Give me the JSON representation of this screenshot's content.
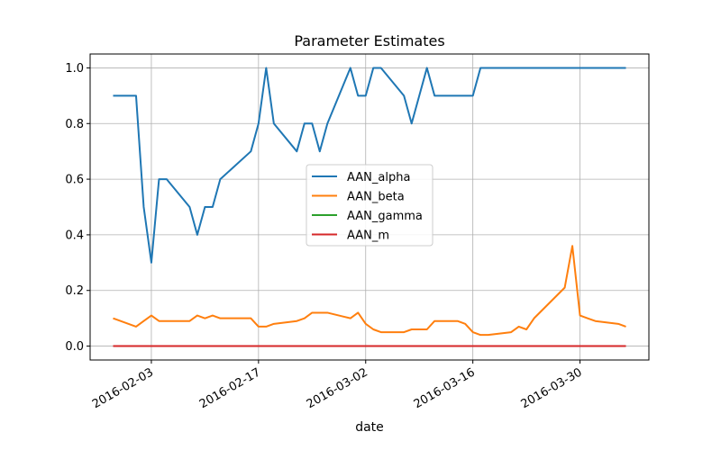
{
  "chart_data": {
    "type": "line",
    "title": "Parameter Estimates",
    "xlabel": "date",
    "ylabel": "",
    "x_dates": [
      "2016-01-29",
      "2016-02-01",
      "2016-02-02",
      "2016-02-03",
      "2016-02-04",
      "2016-02-05",
      "2016-02-08",
      "2016-02-09",
      "2016-02-10",
      "2016-02-11",
      "2016-02-12",
      "2016-02-16",
      "2016-02-17",
      "2016-02-18",
      "2016-02-19",
      "2016-02-22",
      "2016-02-23",
      "2016-02-24",
      "2016-02-25",
      "2016-02-26",
      "2016-02-29",
      "2016-03-01",
      "2016-03-02",
      "2016-03-03",
      "2016-03-04",
      "2016-03-07",
      "2016-03-08",
      "2016-03-09",
      "2016-03-10",
      "2016-03-11",
      "2016-03-14",
      "2016-03-15",
      "2016-03-16",
      "2016-03-17",
      "2016-03-18",
      "2016-03-21",
      "2016-03-22",
      "2016-03-23",
      "2016-03-24",
      "2016-03-28",
      "2016-03-29",
      "2016-03-30",
      "2016-03-31",
      "2016-04-01",
      "2016-04-04",
      "2016-04-05"
    ],
    "x_ticks": [
      "2016-02-03",
      "2016-02-17",
      "2016-03-02",
      "2016-03-16",
      "2016-03-30"
    ],
    "y_ticks": [
      0.0,
      0.2,
      0.4,
      0.6,
      0.8,
      1.0
    ],
    "y_tick_labels": [
      "0.0",
      "0.2",
      "0.4",
      "0.6",
      "0.8",
      "1.0"
    ],
    "xlim": [
      "2016-01-26",
      "2016-04-08"
    ],
    "ylim": [
      -0.05,
      1.05
    ],
    "grid": true,
    "legend_position": "center",
    "series": [
      {
        "name": "AAN_alpha",
        "color": "#1f77b4",
        "values": [
          0.9,
          0.9,
          0.5,
          0.3,
          0.6,
          0.6,
          0.5,
          0.4,
          0.5,
          0.5,
          0.6,
          0.7,
          0.8,
          1.0,
          0.8,
          0.7,
          0.8,
          0.8,
          0.7,
          0.8,
          1.0,
          0.9,
          0.9,
          1.0,
          1.0,
          0.9,
          0.8,
          0.9,
          1.0,
          0.9,
          0.9,
          0.9,
          0.9,
          1.0,
          1.0,
          1.0,
          1.0,
          1.0,
          1.0,
          1.0,
          1.0,
          1.0,
          1.0,
          1.0,
          1.0,
          1.0
        ]
      },
      {
        "name": "AAN_beta",
        "color": "#ff7f0e",
        "values": [
          0.1,
          0.07,
          0.09,
          0.11,
          0.09,
          0.09,
          0.09,
          0.11,
          0.1,
          0.11,
          0.1,
          0.1,
          0.07,
          0.07,
          0.08,
          0.09,
          0.1,
          0.12,
          0.12,
          0.12,
          0.1,
          0.12,
          0.08,
          0.06,
          0.05,
          0.05,
          0.06,
          0.06,
          0.06,
          0.09,
          0.09,
          0.08,
          0.05,
          0.04,
          0.04,
          0.05,
          0.07,
          0.06,
          0.1,
          0.21,
          0.36,
          0.11,
          0.1,
          0.09,
          0.08,
          0.07
        ]
      },
      {
        "name": "AAN_gamma",
        "color": "#2ca02c",
        "values": [
          0,
          0,
          0,
          0,
          0,
          0,
          0,
          0,
          0,
          0,
          0,
          0,
          0,
          0,
          0,
          0,
          0,
          0,
          0,
          0,
          0,
          0,
          0,
          0,
          0,
          0,
          0,
          0,
          0,
          0,
          0,
          0,
          0,
          0,
          0,
          0,
          0,
          0,
          0,
          0,
          0,
          0,
          0,
          0,
          0,
          0
        ]
      },
      {
        "name": "AAN_m",
        "color": "#d62728",
        "values": [
          0,
          0,
          0,
          0,
          0,
          0,
          0,
          0,
          0,
          0,
          0,
          0,
          0,
          0,
          0,
          0,
          0,
          0,
          0,
          0,
          0,
          0,
          0,
          0,
          0,
          0,
          0,
          0,
          0,
          0,
          0,
          0,
          0,
          0,
          0,
          0,
          0,
          0,
          0,
          0,
          0,
          0,
          0,
          0,
          0,
          0
        ]
      }
    ]
  }
}
